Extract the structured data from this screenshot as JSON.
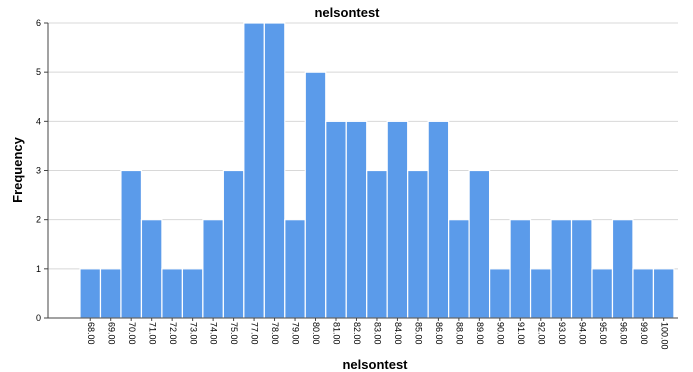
{
  "chart_data": {
    "type": "bar",
    "title": "nelsontest",
    "xlabel": "nelsontest",
    "ylabel": "Frequency",
    "categories": [
      "68.00",
      "69.00",
      "70.00",
      "71.00",
      "72.00",
      "73.00",
      "74.00",
      "75.00",
      "77.00",
      "78.00",
      "79.00",
      "80.00",
      "81.00",
      "82.00",
      "83.00",
      "84.00",
      "85.00",
      "86.00",
      "88.00",
      "89.00",
      "90.00",
      "91.00",
      "92.00",
      "93.00",
      "94.00",
      "95.00",
      "96.00",
      "99.00",
      "100.00"
    ],
    "values": [
      1,
      1,
      3,
      2,
      1,
      1,
      2,
      3,
      6,
      6,
      2,
      5,
      4,
      4,
      3,
      4,
      3,
      4,
      2,
      3,
      1,
      2,
      1,
      2,
      2,
      1,
      2,
      1,
      1
    ],
    "ylim": [
      0,
      6
    ],
    "yticks": [
      0,
      1,
      2,
      3,
      4,
      5,
      6
    ],
    "grid": true,
    "bar_color": "#5b9bea",
    "grid_color": "#d8d8d8"
  }
}
